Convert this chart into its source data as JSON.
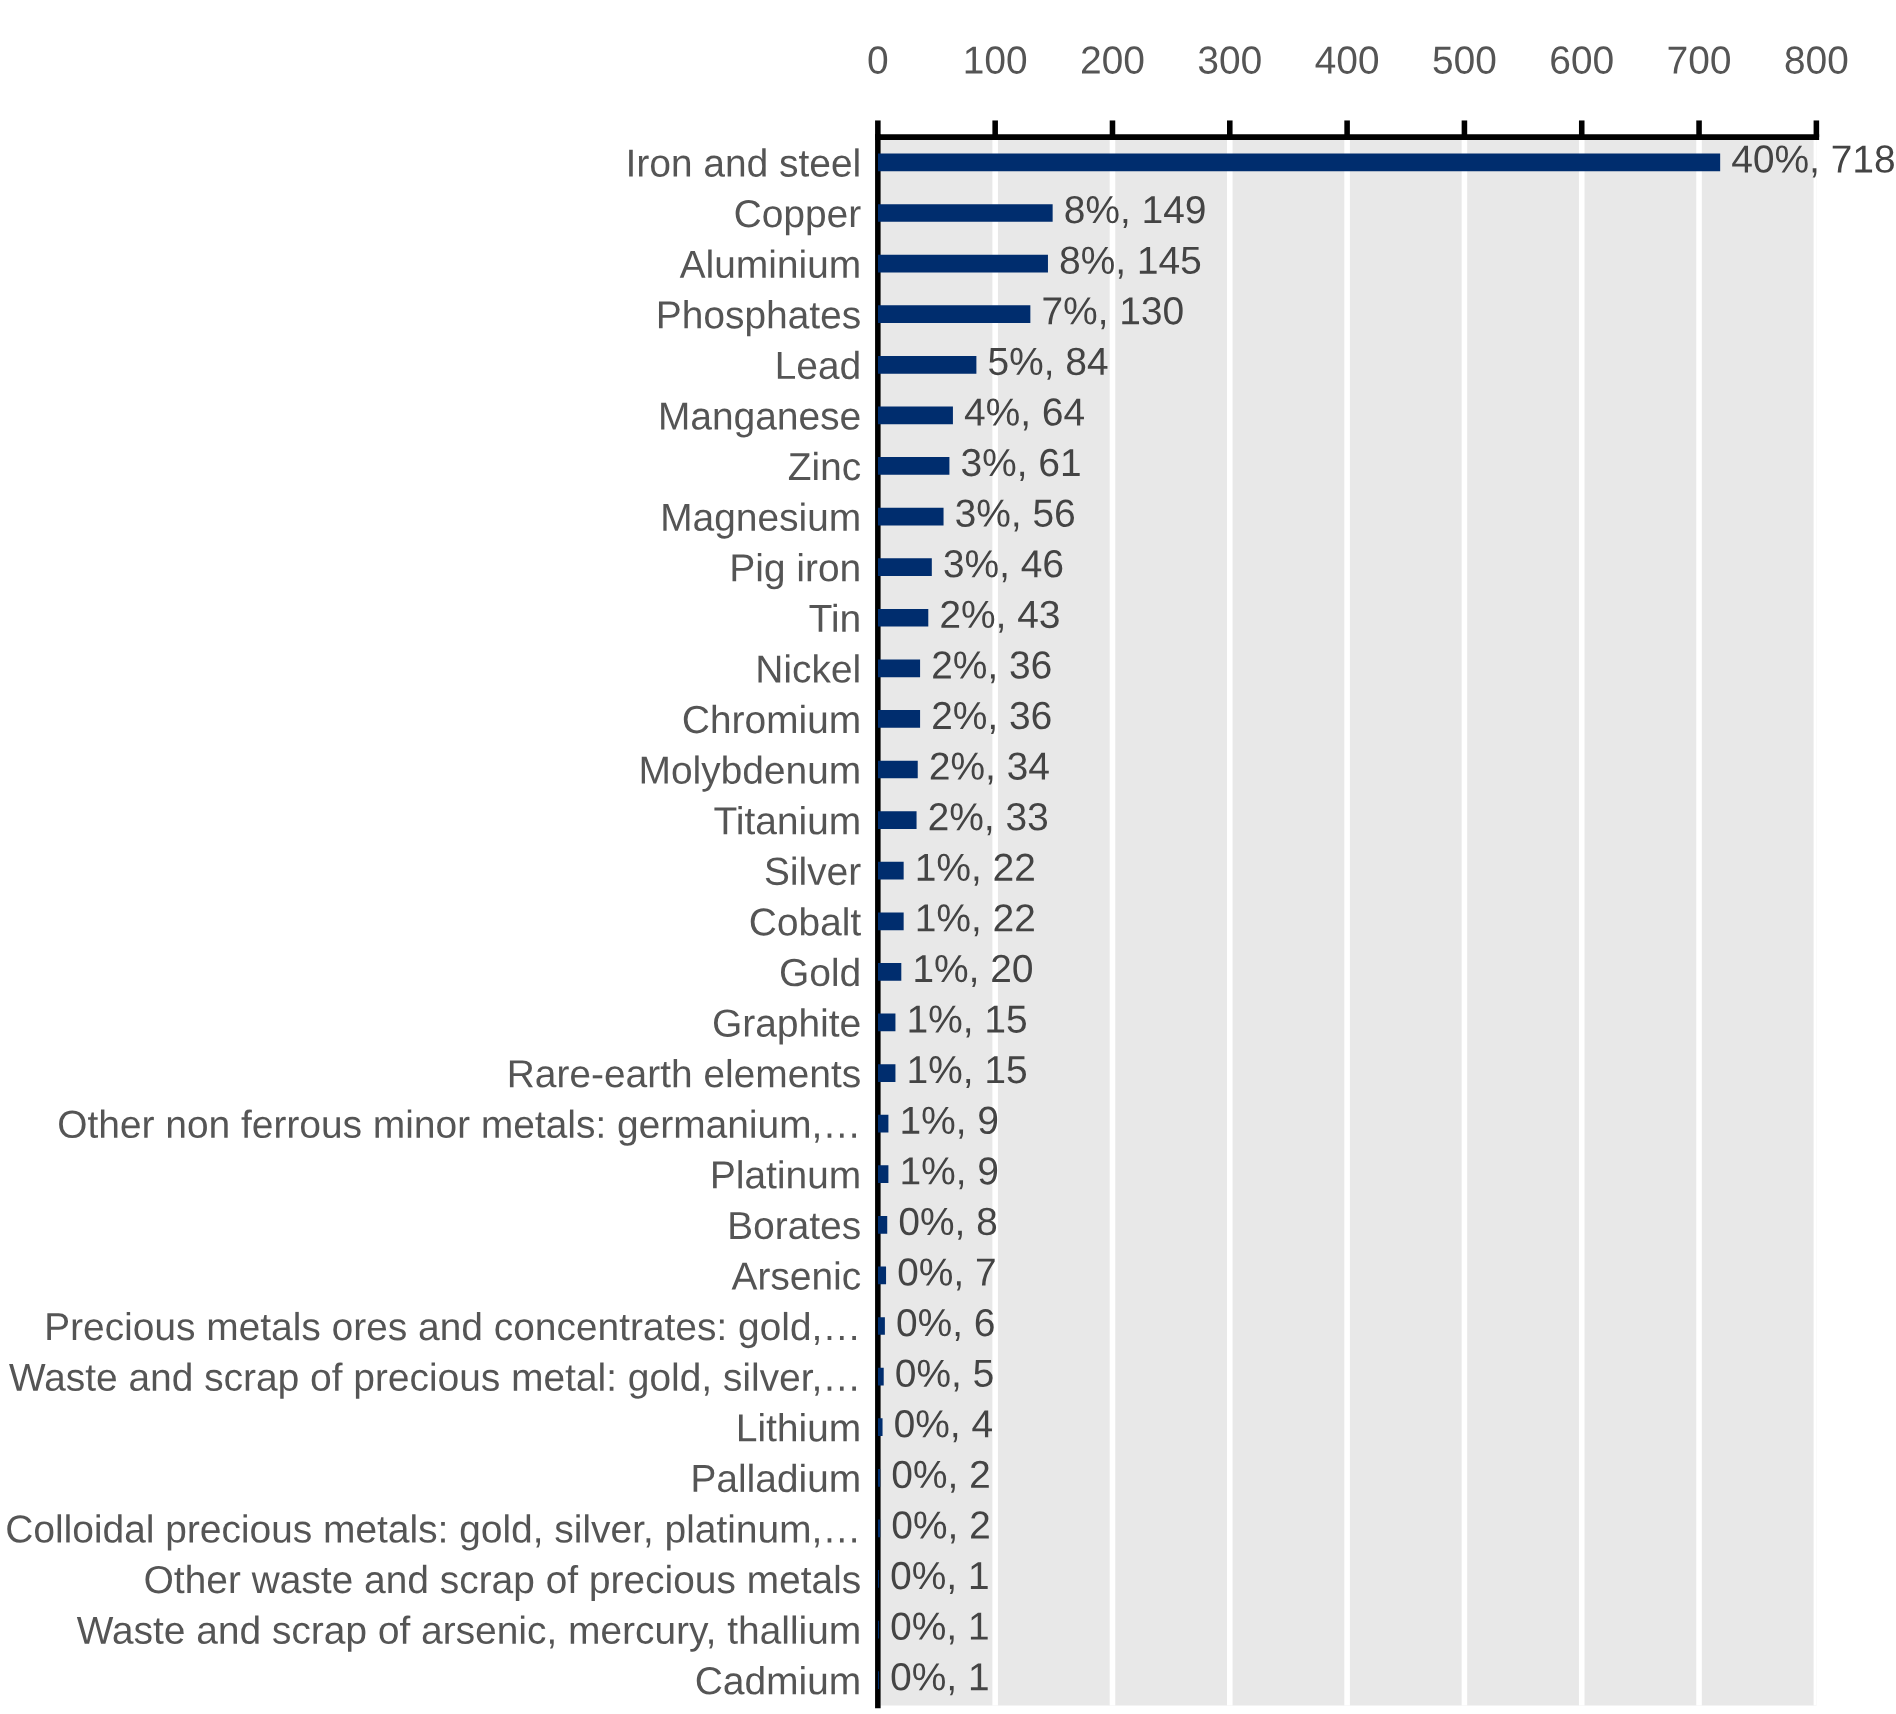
{
  "chart_data": {
    "type": "bar",
    "orientation": "horizontal",
    "categories": [
      "Iron and steel",
      "Copper",
      "Aluminium",
      "Phosphates",
      "Lead",
      "Manganese",
      "Zinc",
      "Magnesium",
      "Pig iron",
      "Tin",
      "Nickel",
      "Chromium",
      "Molybdenum",
      "Titanium",
      "Silver",
      "Cobalt",
      "Gold",
      "Graphite",
      "Rare-earth elements",
      "Other non ferrous minor metals: germanium,…",
      "Platinum",
      "Borates",
      "Arsenic",
      "Precious metals ores and concentrates: gold,…",
      "Waste and scrap of precious metal: gold, silver,…",
      "Lithium",
      "Palladium",
      "Colloidal precious metals: gold, silver, platinum,…",
      "Other waste and scrap of precious metals",
      "Waste and scrap of arsenic, mercury, thallium",
      "Cadmium"
    ],
    "values": [
      718,
      149,
      145,
      130,
      84,
      64,
      61,
      56,
      46,
      43,
      36,
      36,
      34,
      33,
      22,
      22,
      20,
      15,
      15,
      9,
      9,
      8,
      7,
      6,
      5,
      4,
      2,
      2,
      1,
      1,
      1
    ],
    "value_labels": [
      "40%, 718",
      "8%, 149",
      "8%, 145",
      "7%, 130",
      "5%, 84",
      "4%, 64",
      "3%, 61",
      "3%, 56",
      "3%, 46",
      "2%, 43",
      "2%, 36",
      "2%, 36",
      "2%, 34",
      "2%, 33",
      "1%, 22",
      "1%, 22",
      "1%, 20",
      "1%, 15",
      "1%, 15",
      "1%, 9",
      "1%, 9",
      "0%, 8",
      "0%, 7",
      "0%, 6",
      "0%, 5",
      "0%, 4",
      "0%, 2",
      "0%, 2",
      "0%, 1",
      "0%, 1",
      "0%, 1"
    ],
    "color": "#002d6e",
    "xlim": [
      0,
      800
    ],
    "xticks": [
      0,
      100,
      200,
      300,
      400,
      500,
      600,
      700,
      800
    ],
    "grid": "x"
  }
}
